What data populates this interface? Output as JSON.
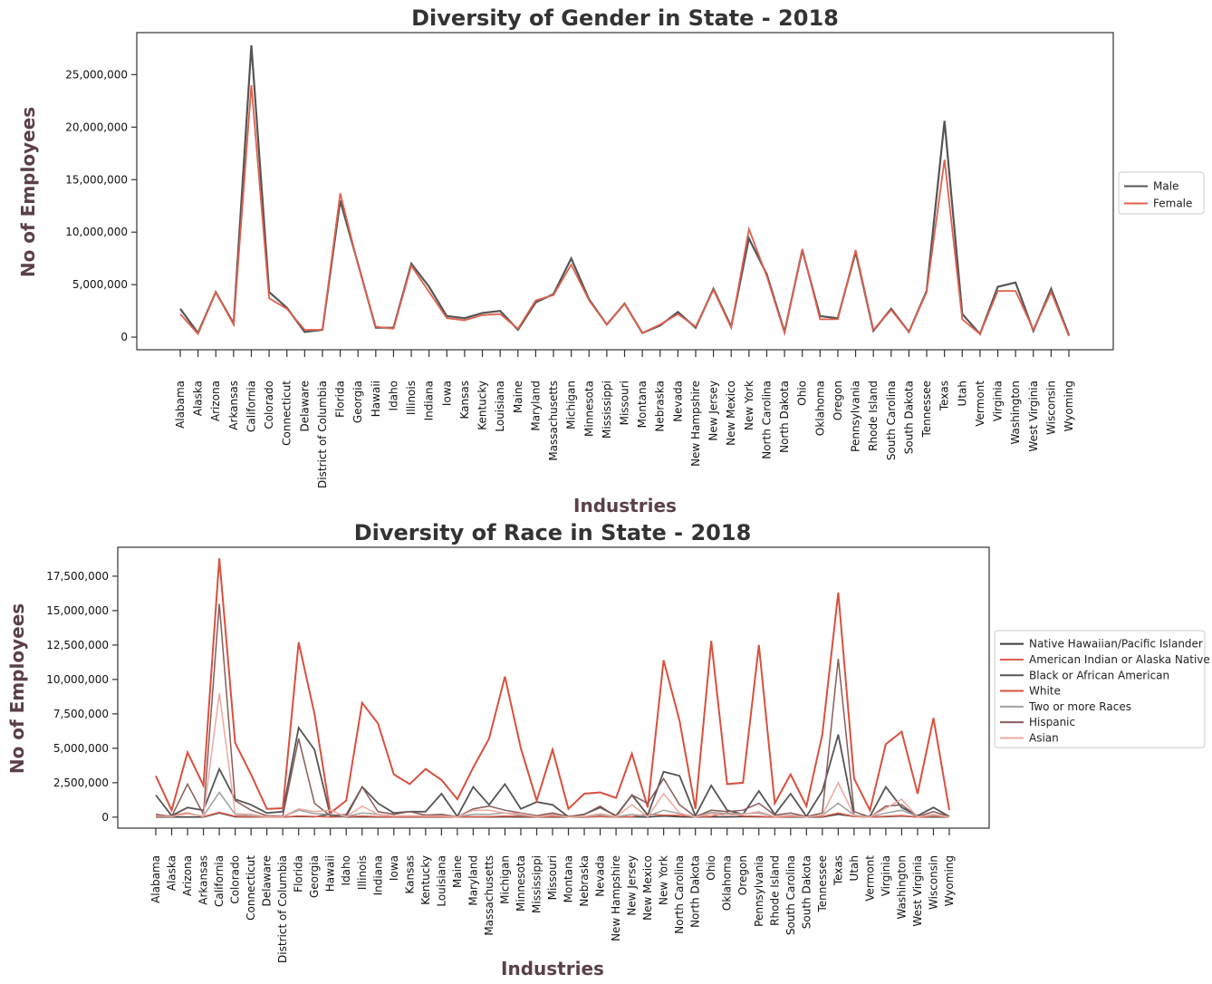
{
  "charts": [
    {
      "type": "line",
      "title": "Diversity of Gender in State - 2018",
      "xlabel": "Industries",
      "ylabel": "No of Employees",
      "ylim": [
        -1200000,
        29000000
      ],
      "yticks": [
        0,
        5000000,
        10000000,
        15000000,
        20000000,
        25000000
      ],
      "ytick_labels": [
        "0",
        "5,000,000",
        "10,000,000",
        "15,000,000",
        "20,000,000",
        "25,000,000"
      ],
      "legend_position": "right",
      "categories": [
        "Alabama",
        "Alaska",
        "Arizona",
        "Arkansas",
        "California",
        "Colorado",
        "Connecticut",
        "Delaware",
        "District of Columbia",
        "Florida",
        "Georgia",
        "Hawaii",
        "Idaho",
        "Illinois",
        "Indiana",
        "Iowa",
        "Kansas",
        "Kentucky",
        "Louisiana",
        "Maine",
        "Maryland",
        "Massachusetts",
        "Michigan",
        "Minnesota",
        "Mississippi",
        "Missouri",
        "Montana",
        "Nebraska",
        "Nevada",
        "New Hampshire",
        "New Jersey",
        "New Mexico",
        "New York",
        "North Carolina",
        "North Dakota",
        "Ohio",
        "Oklahoma",
        "Oregon",
        "Pennsylvania",
        "Rhode Island",
        "South Carolina",
        "South Dakota",
        "Tennessee",
        "Texas",
        "Utah",
        "Vermont",
        "Virginia",
        "Washington",
        "West Virginia",
        "Wisconsin",
        "Wyoming"
      ],
      "series": [
        {
          "name": "Male",
          "color": "#555555",
          "width": 2.2,
          "values": [
            2700000,
            400000,
            4300000,
            1300000,
            27800000,
            4300000,
            2800000,
            500000,
            700000,
            13000000,
            7000000,
            900000,
            900000,
            7000000,
            4800000,
            2000000,
            1800000,
            2300000,
            2500000,
            700000,
            3300000,
            4100000,
            7500000,
            3600000,
            1200000,
            3200000,
            400000,
            1100000,
            2400000,
            900000,
            4600000,
            1000000,
            9400000,
            6000000,
            500000,
            8300000,
            2000000,
            1800000,
            8100000,
            600000,
            2700000,
            500000,
            4400000,
            20600000,
            2200000,
            300000,
            4800000,
            5200000,
            600000,
            4600000,
            200000
          ]
        },
        {
          "name": "Female",
          "color": "#e0604e",
          "width": 1.8,
          "values": [
            2200000,
            300000,
            4300000,
            1200000,
            24000000,
            3700000,
            2700000,
            700000,
            700000,
            13700000,
            6900000,
            1000000,
            800000,
            6800000,
            4300000,
            1800000,
            1600000,
            2100000,
            2200000,
            800000,
            3500000,
            4000000,
            6900000,
            3500000,
            1200000,
            3200000,
            400000,
            1200000,
            2200000,
            1000000,
            4500000,
            900000,
            10300000,
            5800000,
            400000,
            8400000,
            1700000,
            1700000,
            8300000,
            700000,
            2600000,
            500000,
            4300000,
            16900000,
            1700000,
            300000,
            4400000,
            4400000,
            700000,
            4300000,
            100000
          ]
        }
      ]
    },
    {
      "type": "line",
      "title": "Diversity of Race in State - 2018",
      "xlabel": "Industries",
      "ylabel": "No of Employees",
      "ylim": [
        -800000,
        19600000
      ],
      "yticks": [
        0,
        2500000,
        5000000,
        7500000,
        10000000,
        12500000,
        15000000,
        17500000
      ],
      "ytick_labels": [
        "0",
        "2,500,000",
        "5,000,000",
        "7,500,000",
        "10,000,000",
        "12,500,000",
        "15,000,000",
        "17,500,000"
      ],
      "legend_position": "right",
      "categories": [
        "Alabama",
        "Alaska",
        "Arizona",
        "Arkansas",
        "California",
        "Colorado",
        "Connecticut",
        "Delaware",
        "District of Columbia",
        "Florida",
        "Georgia",
        "Hawaii",
        "Idaho",
        "Illinois",
        "Indiana",
        "Iowa",
        "Kansas",
        "Kentucky",
        "Louisiana",
        "Maine",
        "Maryland",
        "Massachusetts",
        "Michigan",
        "Minnesota",
        "Mississippi",
        "Missouri",
        "Montana",
        "Nebraska",
        "Nevada",
        "New Hampshire",
        "New Jersey",
        "New Mexico",
        "New York",
        "North Carolina",
        "North Dakota",
        "Ohio",
        "Oklahoma",
        "Oregon",
        "Pennsylvania",
        "Rhode Island",
        "South Carolina",
        "South Dakota",
        "Tennessee",
        "Texas",
        "Utah",
        "Vermont",
        "Virginia",
        "Washington",
        "West Virginia",
        "Wisconsin",
        "Wyoming"
      ],
      "series": [
        {
          "name": "Native Hawaiian/Pacific Islander",
          "color": "#3f3f3f",
          "width": 1.5,
          "values": [
            5000,
            2000,
            15000,
            4000,
            300000,
            20000,
            5000,
            1000,
            2000,
            50000,
            25000,
            200000,
            3000,
            25000,
            10000,
            5000,
            8000,
            8000,
            5000,
            1000,
            20000,
            10000,
            15000,
            10000,
            3000,
            15000,
            1000,
            5000,
            40000,
            1000,
            20000,
            3000,
            80000,
            20000,
            1000,
            25000,
            15000,
            30000,
            25000,
            3000,
            10000,
            1000,
            10000,
            200000,
            50000,
            500,
            30000,
            80000,
            1000,
            10000,
            1000
          ]
        },
        {
          "name": "American Indian or Alaska Native",
          "color": "#e0604e",
          "width": 1.5,
          "values": [
            50000,
            100000,
            300000,
            40000,
            350000,
            70000,
            20000,
            10000,
            5000,
            90000,
            50000,
            10000,
            30000,
            80000,
            40000,
            20000,
            40000,
            30000,
            40000,
            10000,
            40000,
            40000,
            80000,
            70000,
            20000,
            50000,
            60000,
            30000,
            50000,
            5000,
            40000,
            200000,
            150000,
            130000,
            40000,
            60000,
            300000,
            80000,
            60000,
            10000,
            40000,
            60000,
            40000,
            300000,
            50000,
            5000,
            60000,
            120000,
            10000,
            60000,
            20000
          ]
        },
        {
          "name": "Black or African American",
          "color": "#555555",
          "width": 1.8,
          "values": [
            1600000,
            100000,
            700000,
            500000,
            3500000,
            1300000,
            900000,
            300000,
            400000,
            6500000,
            4900000,
            100000,
            50000,
            2200000,
            1000000,
            300000,
            400000,
            400000,
            1700000,
            50000,
            2200000,
            900000,
            2400000,
            600000,
            1100000,
            900000,
            20000,
            200000,
            700000,
            100000,
            1600000,
            150000,
            3300000,
            3000000,
            100000,
            2300000,
            500000,
            200000,
            1900000,
            200000,
            1700000,
            50000,
            1900000,
            6000000,
            100000,
            50000,
            2200000,
            700000,
            100000,
            700000,
            50000
          ]
        },
        {
          "name": "White",
          "color": "#d9503e",
          "width": 2.0,
          "values": [
            3000000,
            500000,
            4700000,
            2300000,
            18800000,
            5400000,
            3100000,
            600000,
            650000,
            12700000,
            7500000,
            300000,
            1200000,
            8300000,
            6800000,
            3100000,
            2400000,
            3500000,
            2700000,
            1300000,
            3600000,
            5700000,
            10200000,
            5000000,
            1200000,
            4900000,
            600000,
            1700000,
            1800000,
            1400000,
            4600000,
            700000,
            11400000,
            7000000,
            600000,
            12800000,
            2400000,
            2500000,
            12500000,
            1000000,
            3100000,
            800000,
            6000000,
            16300000,
            2800000,
            500000,
            5300000,
            6200000,
            1700000,
            7200000,
            500000
          ]
        },
        {
          "name": "Two or more Races",
          "color": "#a0a0a0",
          "width": 1.5,
          "values": [
            100000,
            60000,
            250000,
            80000,
            1800000,
            200000,
            100000,
            30000,
            30000,
            500000,
            250000,
            200000,
            40000,
            300000,
            200000,
            80000,
            100000,
            100000,
            100000,
            30000,
            200000,
            200000,
            300000,
            150000,
            50000,
            200000,
            30000,
            60000,
            150000,
            30000,
            200000,
            60000,
            500000,
            250000,
            20000,
            350000,
            250000,
            250000,
            300000,
            50000,
            150000,
            30000,
            150000,
            1000000,
            150000,
            20000,
            300000,
            500000,
            50000,
            150000,
            20000
          ]
        },
        {
          "name": "Hispanic",
          "color": "#8b5a5a",
          "width": 1.5,
          "values": [
            200000,
            50000,
            2400000,
            200000,
            15500000,
            1200000,
            500000,
            100000,
            80000,
            5700000,
            1000000,
            100000,
            200000,
            2200000,
            400000,
            200000,
            400000,
            150000,
            200000,
            20000,
            600000,
            800000,
            500000,
            300000,
            100000,
            300000,
            40000,
            200000,
            800000,
            50000,
            1600000,
            1000000,
            2800000,
            900000,
            30000,
            500000,
            400000,
            500000,
            1000000,
            150000,
            300000,
            40000,
            300000,
            11500000,
            400000,
            10000,
            800000,
            900000,
            30000,
            400000,
            50000
          ]
        },
        {
          "name": "Asian",
          "color": "#ebaaa0",
          "width": 1.5,
          "values": [
            80000,
            40000,
            250000,
            50000,
            9000000,
            250000,
            200000,
            40000,
            40000,
            600000,
            400000,
            500000,
            30000,
            800000,
            200000,
            80000,
            100000,
            80000,
            80000,
            15000,
            500000,
            500000,
            300000,
            250000,
            30000,
            150000,
            10000,
            50000,
            250000,
            40000,
            900000,
            30000,
            1700000,
            300000,
            10000,
            250000,
            100000,
            200000,
            400000,
            40000,
            100000,
            10000,
            150000,
            2500000,
            100000,
            10000,
            650000,
            1300000,
            10000,
            200000,
            5000
          ]
        }
      ]
    }
  ]
}
